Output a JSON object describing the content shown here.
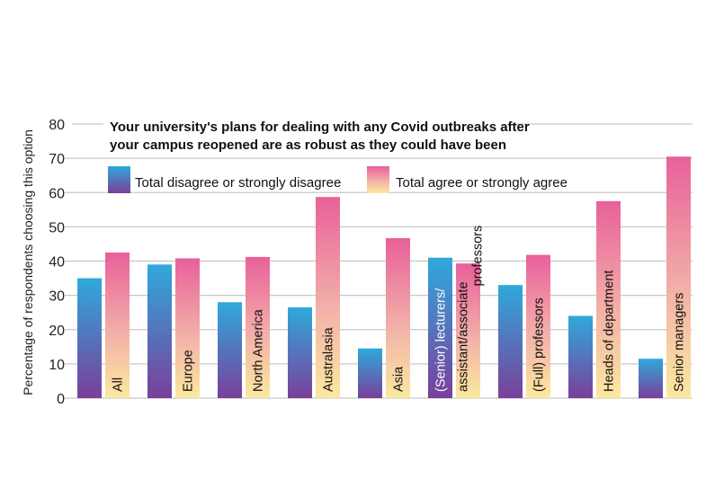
{
  "chart_data": {
    "type": "bar",
    "title": "Your university's plans for dealing with any Covid outbreaks after your campus reopened are as robust as they could have been",
    "title_lines": [
      "Your university's plans for dealing with any Covid outbreaks after",
      "your campus reopened are as robust as they could have been"
    ],
    "ylabel": "Percentage of respondents choosing this option",
    "xlabel": "",
    "ylim": [
      0,
      80
    ],
    "yticks": [
      0,
      10,
      20,
      30,
      40,
      50,
      60,
      70,
      80
    ],
    "grid": true,
    "legend_placement": "top",
    "categories": [
      "All",
      "Europe",
      "North America",
      "Australasia",
      "Asia",
      "(Senior) lecturers/ assistant/associate professors",
      "(Full) professors",
      "Heads of department",
      "Senior managers"
    ],
    "category_label_parts": [
      [
        "All"
      ],
      [
        "Europe"
      ],
      [
        "North America"
      ],
      [
        "Australasia"
      ],
      [
        "Asia"
      ],
      [
        "(Senior) lecturers/",
        "assistant/associate",
        "professors"
      ],
      [
        "(Full) professors"
      ],
      [
        "Heads of department"
      ],
      [
        "Senior managers"
      ]
    ],
    "series": [
      {
        "name": "Total disagree or strongly disagree",
        "values": [
          35,
          39,
          28,
          26.5,
          14.5,
          41,
          33,
          24,
          11.5
        ],
        "colors": [
          "#2fa9dc",
          "#7a3f9a"
        ]
      },
      {
        "name": "Total agree or strongly agree",
        "values": [
          42.5,
          40.8,
          41.2,
          58.7,
          46.7,
          39.3,
          41.8,
          57.5,
          70.5
        ],
        "colors": [
          "#e8609a",
          "#fbe9a0"
        ]
      }
    ]
  }
}
